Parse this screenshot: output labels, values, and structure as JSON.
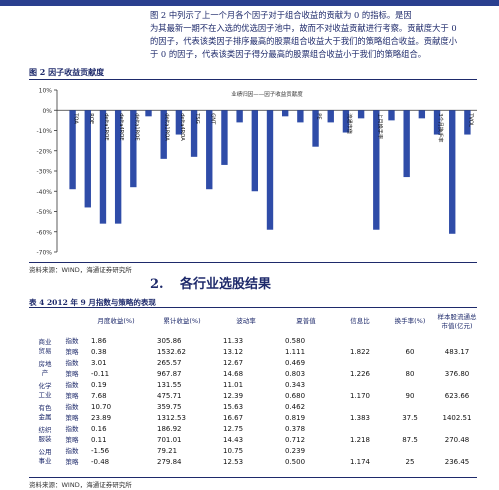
{
  "paragraph": [
    "图 2 中列示了上一个月各个因子对于组合收益的贡献为 0 的指标。是因",
    "为其最新一期不在入选的优选因子池中，故而不对收益贡献进行考察。贡献度大于 0",
    "的因子，代表该类因子排序最高的股票组合收益大于我们的策略组合收益。贡献度小",
    "于 0 的因子，代表该类因子得分最高的股票组合收益小于我们的策略组合。"
  ],
  "figure": {
    "title": "图 2   因子收益贡献度",
    "source": "资料来源：WIND，海通证券研究所"
  },
  "chart_data": {
    "type": "bar",
    "title": "",
    "xlabel": "",
    "ylabel": "",
    "ylim": [
      -70,
      10
    ],
    "yticks": [
      "10%",
      "0%",
      "-10%",
      "-20%",
      "-30%",
      "-40%",
      "-50%",
      "-60%",
      "-70%"
    ],
    "legend": "业绩归因——因子收益贡献度",
    "legend_position": "top-center",
    "grid": false,
    "color": "#2f4ca8",
    "categories": [
      "TOA",
      "ROE",
      "delta1ROE",
      "delta4ROE",
      "delta1ROE",
      "",
      "delta1ROA",
      "delta4ROA",
      "TSG",
      "GNT",
      "",
      "",
      "",
      "",
      "",
      "",
      "PE",
      "",
      "流通市值",
      "",
      "上月换手率",
      "",
      "",
      "",
      "3个月换手率",
      "",
      "TVOL"
    ],
    "values": [
      -39,
      -48,
      -56,
      -56,
      -38,
      -3,
      -24,
      -12,
      -23,
      -39,
      -27,
      -6,
      -40,
      -59,
      -3,
      -6,
      -18,
      -6,
      -11,
      -4,
      -59,
      -5,
      -33,
      -4,
      -12,
      -61,
      -12
    ]
  },
  "section": {
    "num": "2.",
    "title": "各行业选股结果"
  },
  "table": {
    "title": "表 4   2012 年 9 月指数与策略的表现",
    "headers": [
      "",
      "",
      "月度收益(%)",
      "累计收益(%)",
      "波动率",
      "夏普值",
      "信息比",
      "换手率(%)",
      "样本股流通总市值(亿元)"
    ],
    "rows": [
      {
        "cat": "商业贸易",
        "type": "指数",
        "v": [
          "1.86",
          "305.86",
          "11.33",
          "0.580",
          "",
          "",
          ""
        ]
      },
      {
        "cat": "",
        "type": "策略",
        "v": [
          "0.38",
          "1532.62",
          "13.12",
          "1.111",
          "1.822",
          "60",
          "483.17"
        ]
      },
      {
        "cat": "房地产",
        "type": "指数",
        "v": [
          "3.01",
          "265.57",
          "12.67",
          "0.469",
          "",
          "",
          ""
        ]
      },
      {
        "cat": "",
        "type": "策略",
        "v": [
          "-0.11",
          "967.87",
          "14.68",
          "0.803",
          "1.226",
          "80",
          "376.80"
        ]
      },
      {
        "cat": "化学工业",
        "type": "指数",
        "v": [
          "0.19",
          "131.55",
          "11.01",
          "0.343",
          "",
          "",
          ""
        ]
      },
      {
        "cat": "",
        "type": "策略",
        "v": [
          "7.68",
          "475.71",
          "12.39",
          "0.680",
          "1.170",
          "90",
          "623.66"
        ]
      },
      {
        "cat": "有色金属",
        "type": "指数",
        "v": [
          "10.70",
          "359.75",
          "15.63",
          "0.462",
          "",
          "",
          ""
        ]
      },
      {
        "cat": "",
        "type": "策略",
        "v": [
          "23.89",
          "1312.53",
          "16.67",
          "0.819",
          "1.383",
          "37.5",
          "1402.51"
        ]
      },
      {
        "cat": "纺织服装",
        "type": "指数",
        "v": [
          "0.16",
          "186.92",
          "12.75",
          "0.378",
          "",
          "",
          ""
        ]
      },
      {
        "cat": "",
        "type": "策略",
        "v": [
          "0.11",
          "701.01",
          "14.43",
          "0.712",
          "1.218",
          "87.5",
          "270.48"
        ]
      },
      {
        "cat": "公用事业",
        "type": "指数",
        "v": [
          "-1.56",
          "79.21",
          "10.75",
          "0.239",
          "",
          "",
          ""
        ]
      },
      {
        "cat": "",
        "type": "策略",
        "v": [
          "-0.48",
          "279.84",
          "12.53",
          "0.500",
          "1.174",
          "25",
          "236.45"
        ]
      }
    ],
    "source": "资料来源：WIND，海通证券研究所"
  }
}
